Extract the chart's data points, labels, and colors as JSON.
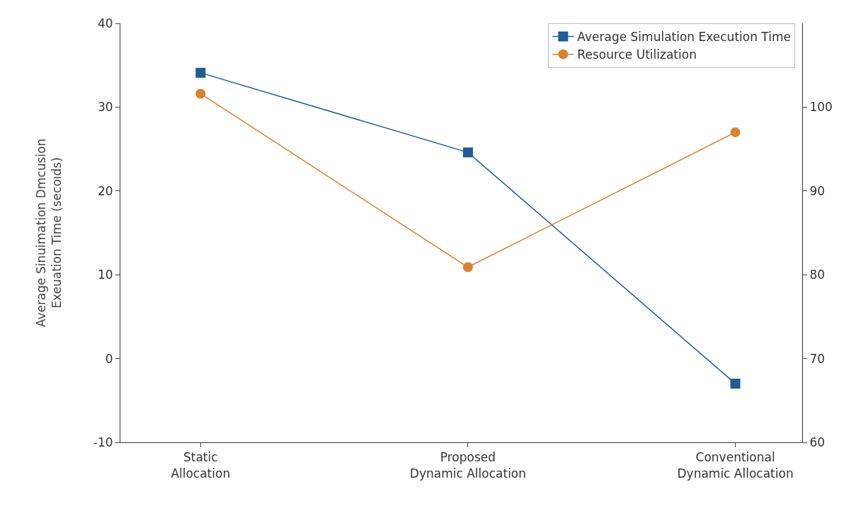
{
  "chart_data": {
    "type": "line",
    "ylabel": "Average Sinuimation Dmcusion\nExeuation Time (secoıds)",
    "categories": [
      "Static\nAllocation",
      "Proposed\nDynamic Allocation",
      "Conventional\nDynamic Allocation"
    ],
    "series": [
      {
        "name": "Average Simulation Execution Time",
        "color": "#1f5b99",
        "marker": "square",
        "values": [
          34.1,
          24.6,
          -3.0
        ]
      },
      {
        "name": "Resource Utilization",
        "color": "#d9822b",
        "marker": "circle",
        "axis": "y2",
        "values": [
          101.6,
          80.9,
          97.0
        ]
      }
    ],
    "ylim": [
      -10,
      40
    ],
    "yticks": [
      -10,
      0,
      10,
      20,
      30,
      40
    ],
    "y2lim": [
      60,
      110
    ],
    "y2ticks": [
      60,
      70,
      80,
      90,
      100
    ],
    "legend": "top right",
    "line_style": "solid"
  }
}
